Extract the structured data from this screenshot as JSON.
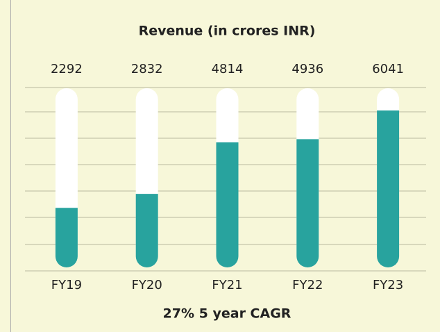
{
  "chart_data": {
    "type": "bar",
    "title": "Revenue (in crores INR)",
    "categories": [
      "FY19",
      "FY20",
      "FY21",
      "FY22",
      "FY23"
    ],
    "values": [
      2292,
      2832,
      4814,
      4936,
      6041
    ],
    "color": "#28a39e",
    "ylim": [
      0,
      6900
    ],
    "footer": "27% 5 year CAGR"
  }
}
